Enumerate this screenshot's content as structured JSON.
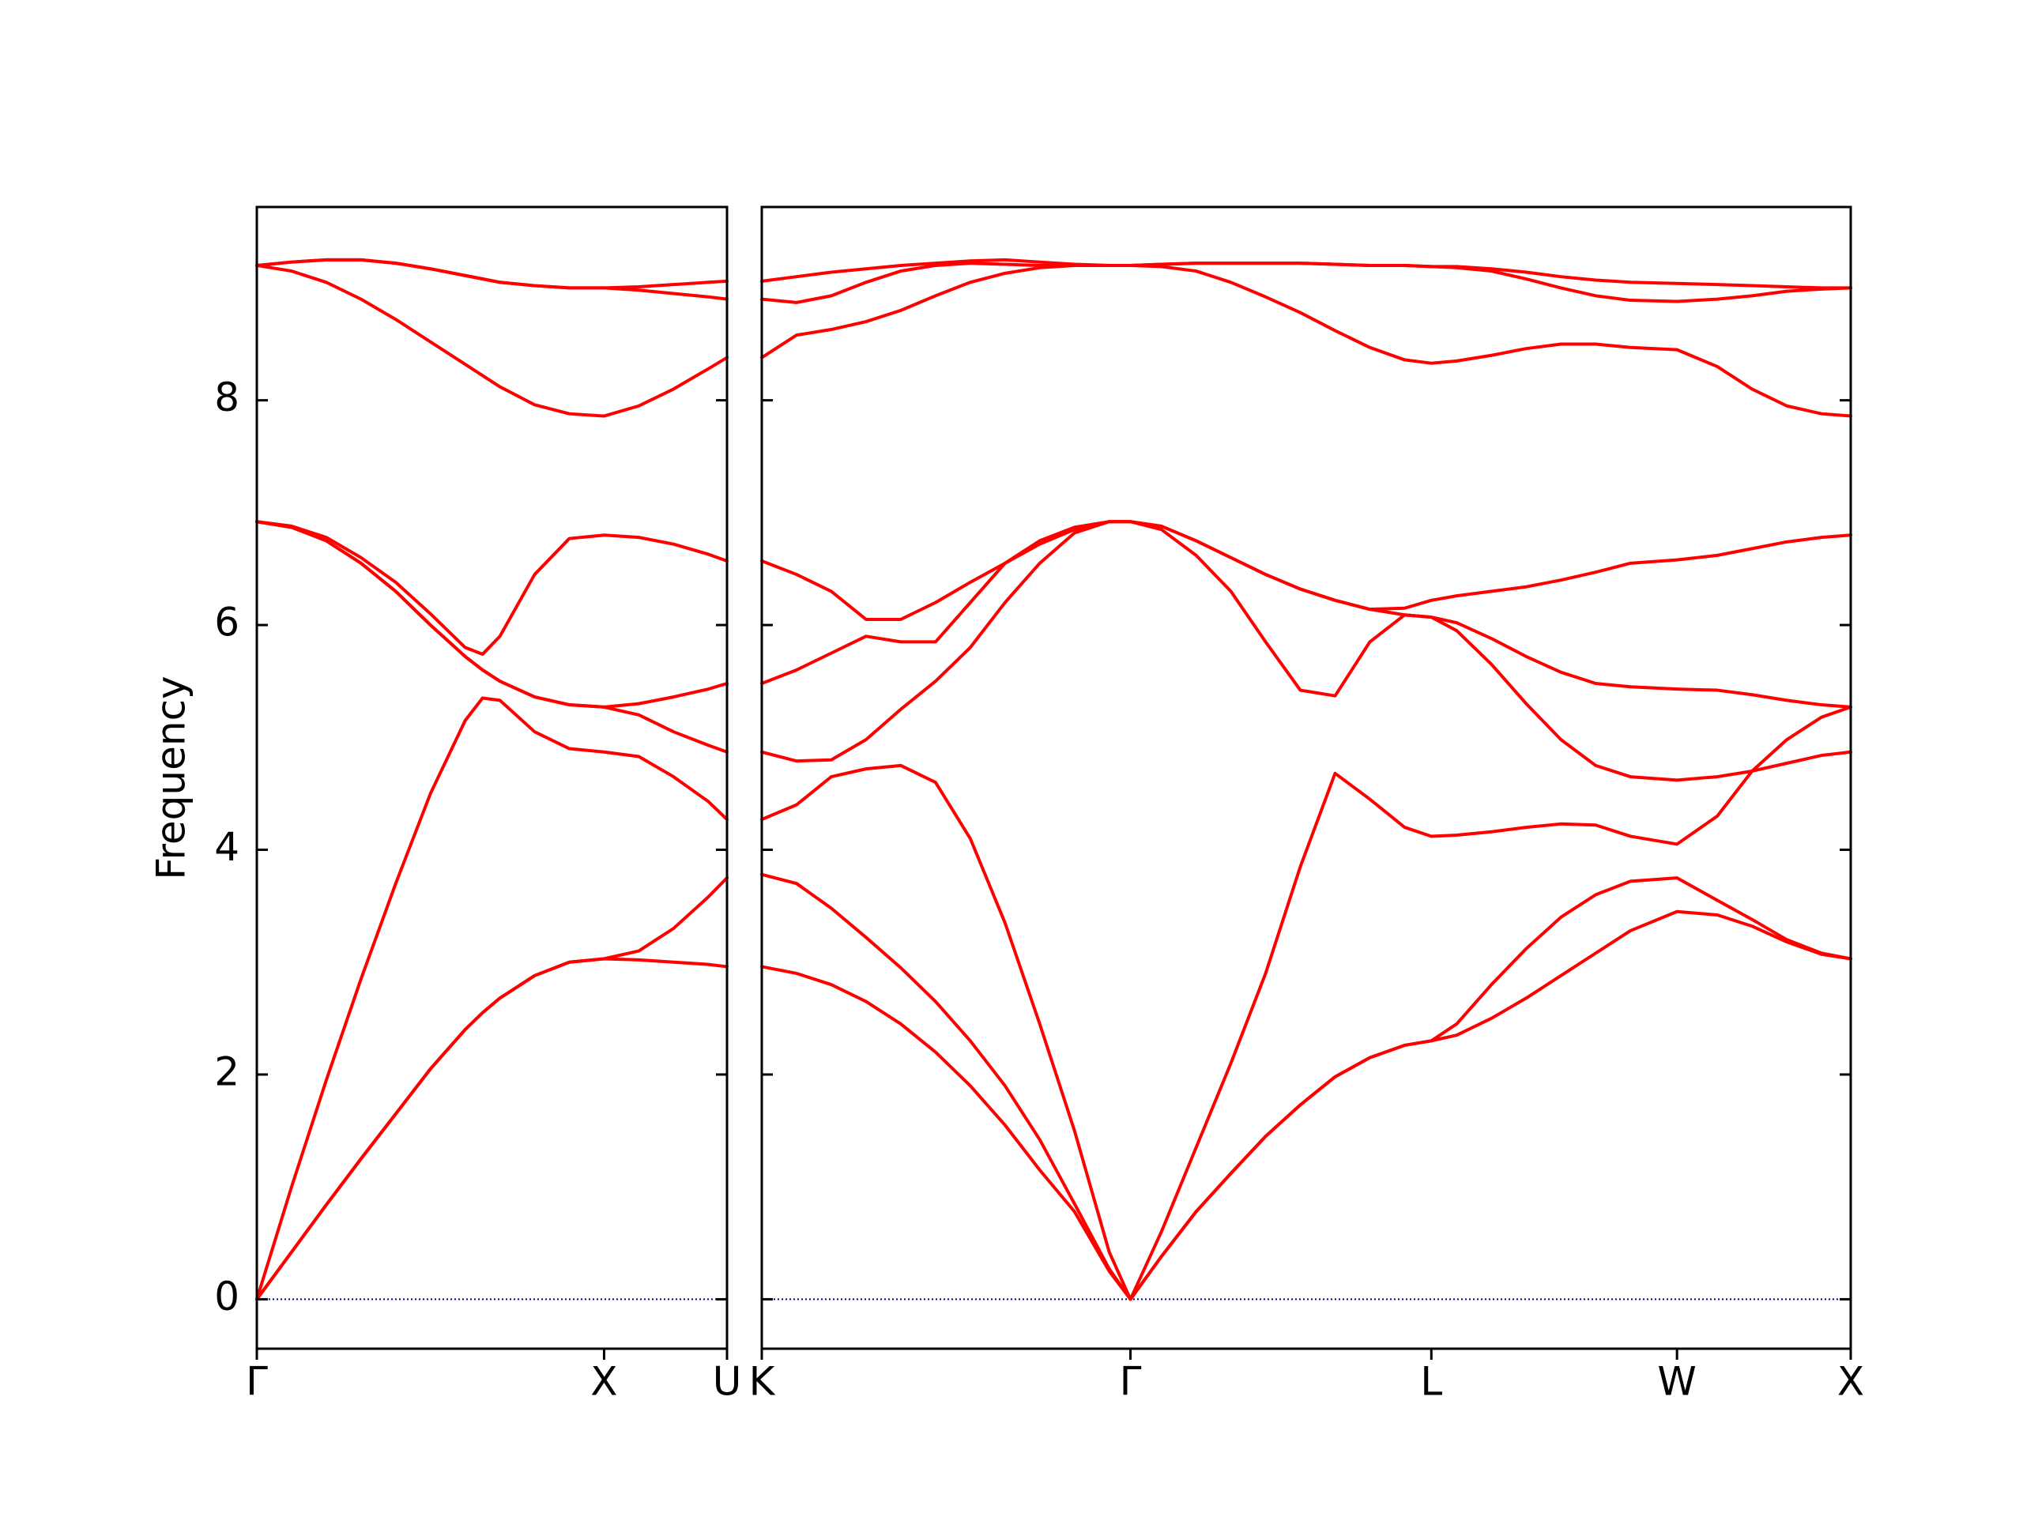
{
  "chart_data": [
    {
      "type": "line",
      "ylabel": "Frequency",
      "color": "#ff0000",
      "x": [
        0,
        0.1,
        0.2,
        0.3,
        0.4,
        0.5,
        0.6,
        0.65,
        0.7,
        0.8,
        0.9,
        1.0,
        1.1,
        1.2,
        1.3,
        1.354
      ],
      "series": [
        {
          "values": [
            0,
            0.42,
            0.84,
            1.25,
            1.65,
            2.05,
            2.4,
            2.55,
            2.68,
            2.88,
            3.0,
            3.03,
            3.02,
            3.0,
            2.98,
            2.96
          ]
        },
        {
          "values": [
            0,
            0.42,
            0.84,
            1.25,
            1.65,
            2.05,
            2.4,
            2.55,
            2.68,
            2.88,
            3.0,
            3.03,
            3.1,
            3.3,
            3.58,
            3.75
          ]
        },
        {
          "values": [
            0,
            1.0,
            1.95,
            2.85,
            3.7,
            4.5,
            5.15,
            5.35,
            5.33,
            5.05,
            4.9,
            4.87,
            4.83,
            4.65,
            4.43,
            4.27
          ]
        },
        {
          "values": [
            6.92,
            6.87,
            6.75,
            6.55,
            6.3,
            6.0,
            5.72,
            5.6,
            5.5,
            5.36,
            5.29,
            5.27,
            5.2,
            5.05,
            4.93,
            4.87
          ]
        },
        {
          "values": [
            6.92,
            6.87,
            6.75,
            6.55,
            6.3,
            6.0,
            5.72,
            5.6,
            5.5,
            5.36,
            5.29,
            5.27,
            5.3,
            5.36,
            5.43,
            5.48
          ]
        },
        {
          "values": [
            6.92,
            6.88,
            6.78,
            6.6,
            6.38,
            6.1,
            5.8,
            5.74,
            5.9,
            6.45,
            6.77,
            6.8,
            6.78,
            6.72,
            6.63,
            6.57
          ]
        },
        {
          "values": [
            9.2,
            9.15,
            9.05,
            8.9,
            8.72,
            8.52,
            8.32,
            8.22,
            8.12,
            7.96,
            7.88,
            7.86,
            7.95,
            8.1,
            8.28,
            8.38
          ]
        },
        {
          "values": [
            9.2,
            9.23,
            9.25,
            9.25,
            9.22,
            9.17,
            9.11,
            9.08,
            9.05,
            9.02,
            9.0,
            9.0,
            8.98,
            8.95,
            8.92,
            8.9
          ]
        },
        {
          "values": [
            9.2,
            9.23,
            9.25,
            9.25,
            9.22,
            9.17,
            9.11,
            9.08,
            9.05,
            9.02,
            9.0,
            9.0,
            9.01,
            9.03,
            9.05,
            9.06
          ]
        }
      ],
      "xlim": [
        0,
        1.354
      ],
      "ylim": [
        -0.44,
        9.72
      ],
      "xticks": [
        {
          "value": 0,
          "label": "Γ"
        },
        {
          "value": 1.0,
          "label": "X"
        },
        {
          "value": 1.354,
          "label": "U"
        }
      ],
      "yticks": [
        0,
        2,
        4,
        6,
        8
      ],
      "show_ytick_labels": true,
      "hline": 0,
      "hline_color": "#00008b"
    },
    {
      "type": "line",
      "color": "#ff0000",
      "x": [
        0,
        0.1,
        0.2,
        0.3,
        0.4,
        0.5,
        0.6,
        0.7,
        0.8,
        0.9,
        1.0,
        1.061,
        1.15,
        1.25,
        1.35,
        1.45,
        1.55,
        1.65,
        1.75,
        1.85,
        1.927,
        2.0,
        2.1,
        2.2,
        2.3,
        2.4,
        2.5,
        2.634,
        2.75,
        2.85,
        2.95,
        3.05,
        3.134
      ],
      "series": [
        {
          "values": [
            2.96,
            2.9,
            2.8,
            2.65,
            2.45,
            2.2,
            1.9,
            1.55,
            1.15,
            0.78,
            0.25,
            0,
            0.38,
            0.78,
            1.12,
            1.45,
            1.73,
            1.98,
            2.15,
            2.26,
            2.3,
            2.35,
            2.5,
            2.68,
            2.88,
            3.08,
            3.28,
            3.45,
            3.42,
            3.32,
            3.18,
            3.07,
            3.03
          ]
        },
        {
          "values": [
            3.78,
            3.7,
            3.48,
            3.22,
            2.95,
            2.65,
            2.3,
            1.9,
            1.42,
            0.85,
            0.27,
            0,
            0.38,
            0.78,
            1.12,
            1.45,
            1.73,
            1.98,
            2.15,
            2.26,
            2.3,
            2.45,
            2.8,
            3.12,
            3.4,
            3.6,
            3.72,
            3.75,
            3.55,
            3.38,
            3.2,
            3.08,
            3.03
          ]
        },
        {
          "values": [
            4.27,
            4.4,
            4.65,
            4.72,
            4.75,
            4.6,
            4.1,
            3.35,
            2.45,
            1.5,
            0.42,
            0,
            0.6,
            1.35,
            2.1,
            2.9,
            3.85,
            4.68,
            4.45,
            4.2,
            4.12,
            4.13,
            4.16,
            4.2,
            4.23,
            4.22,
            4.12,
            4.05,
            4.3,
            4.7,
            4.77,
            4.84,
            4.87
          ]
        },
        {
          "values": [
            4.87,
            4.79,
            4.8,
            4.98,
            5.25,
            5.5,
            5.8,
            6.2,
            6.55,
            6.82,
            6.92,
            6.92,
            6.85,
            6.62,
            6.3,
            5.85,
            5.42,
            5.37,
            5.85,
            6.09,
            6.07,
            5.95,
            5.65,
            5.3,
            4.98,
            4.75,
            4.65,
            4.62,
            4.65,
            4.7,
            4.98,
            5.18,
            5.27
          ]
        },
        {
          "values": [
            5.48,
            5.6,
            5.75,
            5.9,
            5.85,
            5.85,
            6.2,
            6.55,
            6.72,
            6.85,
            6.92,
            6.92,
            6.88,
            6.75,
            6.6,
            6.45,
            6.32,
            6.22,
            6.14,
            6.09,
            6.07,
            6.02,
            5.88,
            5.72,
            5.58,
            5.48,
            5.45,
            5.43,
            5.42,
            5.38,
            5.33,
            5.29,
            5.27
          ]
        },
        {
          "values": [
            6.57,
            6.45,
            6.3,
            6.05,
            6.05,
            6.2,
            6.38,
            6.55,
            6.75,
            6.87,
            6.92,
            6.92,
            6.88,
            6.75,
            6.6,
            6.45,
            6.32,
            6.22,
            6.14,
            6.15,
            6.22,
            6.26,
            6.3,
            6.34,
            6.4,
            6.47,
            6.55,
            6.58,
            6.62,
            6.68,
            6.74,
            6.78,
            6.8
          ]
        },
        {
          "values": [
            8.38,
            8.58,
            8.63,
            8.7,
            8.8,
            8.93,
            9.05,
            9.13,
            9.18,
            9.2,
            9.2,
            9.2,
            9.19,
            9.15,
            9.05,
            8.92,
            8.78,
            8.62,
            8.47,
            8.36,
            8.33,
            8.35,
            8.4,
            8.46,
            8.5,
            8.5,
            8.47,
            8.45,
            8.3,
            8.1,
            7.95,
            7.88,
            7.86
          ]
        },
        {
          "values": [
            8.9,
            8.87,
            8.93,
            9.05,
            9.15,
            9.2,
            9.22,
            9.21,
            9.2,
            9.2,
            9.2,
            9.2,
            9.21,
            9.22,
            9.22,
            9.22,
            9.22,
            9.21,
            9.2,
            9.2,
            9.19,
            9.18,
            9.15,
            9.08,
            9.0,
            8.93,
            8.89,
            8.88,
            8.9,
            8.93,
            8.97,
            8.99,
            9.0
          ]
        },
        {
          "values": [
            9.06,
            9.1,
            9.14,
            9.17,
            9.2,
            9.22,
            9.24,
            9.25,
            9.23,
            9.21,
            9.2,
            9.2,
            9.21,
            9.22,
            9.22,
            9.22,
            9.22,
            9.21,
            9.2,
            9.2,
            9.19,
            9.19,
            9.17,
            9.14,
            9.1,
            9.07,
            9.05,
            9.04,
            9.03,
            9.02,
            9.01,
            9.0,
            9.0
          ]
        }
      ],
      "xlim": [
        0,
        3.134
      ],
      "ylim": [
        -0.44,
        9.72
      ],
      "xticks": [
        {
          "value": 0,
          "label": "K"
        },
        {
          "value": 1.061,
          "label": "Γ"
        },
        {
          "value": 1.927,
          "label": "L"
        },
        {
          "value": 2.634,
          "label": "W"
        },
        {
          "value": 3.134,
          "label": "X"
        }
      ],
      "yticks": [
        0,
        2,
        4,
        6,
        8
      ],
      "show_ytick_labels": false,
      "hline": 0,
      "hline_color": "#00008b"
    }
  ]
}
